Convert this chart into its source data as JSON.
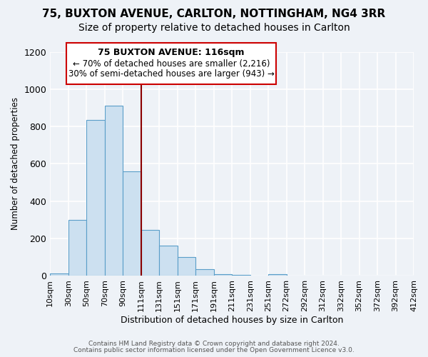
{
  "title1": "75, BUXTON AVENUE, CARLTON, NOTTINGHAM, NG4 3RR",
  "title2": "Size of property relative to detached houses in Carlton",
  "xlabel": "Distribution of detached houses by size in Carlton",
  "ylabel": "Number of detached properties",
  "bar_color": "#cce0f0",
  "bar_edge_color": "#5a9ec9",
  "bin_labels": [
    "10sqm",
    "30sqm",
    "50sqm",
    "70sqm",
    "90sqm",
    "111sqm",
    "131sqm",
    "151sqm",
    "171sqm",
    "191sqm",
    "211sqm",
    "231sqm",
    "251sqm",
    "272sqm",
    "292sqm",
    "312sqm",
    "332sqm",
    "352sqm",
    "372sqm",
    "392sqm",
    "412sqm"
  ],
  "bar_heights": [
    15,
    300,
    835,
    910,
    560,
    245,
    163,
    100,
    35,
    10,
    5,
    3,
    10,
    2,
    0,
    0,
    0,
    0,
    0,
    0
  ],
  "ylim": [
    0,
    1200
  ],
  "yticks": [
    0,
    200,
    400,
    600,
    800,
    1000,
    1200
  ],
  "vline_x": 5,
  "vline_color": "#8b0000",
  "annotation_title": "75 BUXTON AVENUE: 116sqm",
  "annotation_line1": "← 70% of detached houses are smaller (2,216)",
  "annotation_line2": "30% of semi-detached houses are larger (943) →",
  "annotation_box_color": "#ffffff",
  "annotation_box_edge": "#cc0000",
  "footer1": "Contains HM Land Registry data © Crown copyright and database right 2024.",
  "footer2": "Contains public sector information licensed under the Open Government Licence v3.0.",
  "background_color": "#eef2f7",
  "plot_background": "#eef2f7",
  "grid_color": "#ffffff",
  "title_fontsize": 11,
  "subtitle_fontsize": 10
}
